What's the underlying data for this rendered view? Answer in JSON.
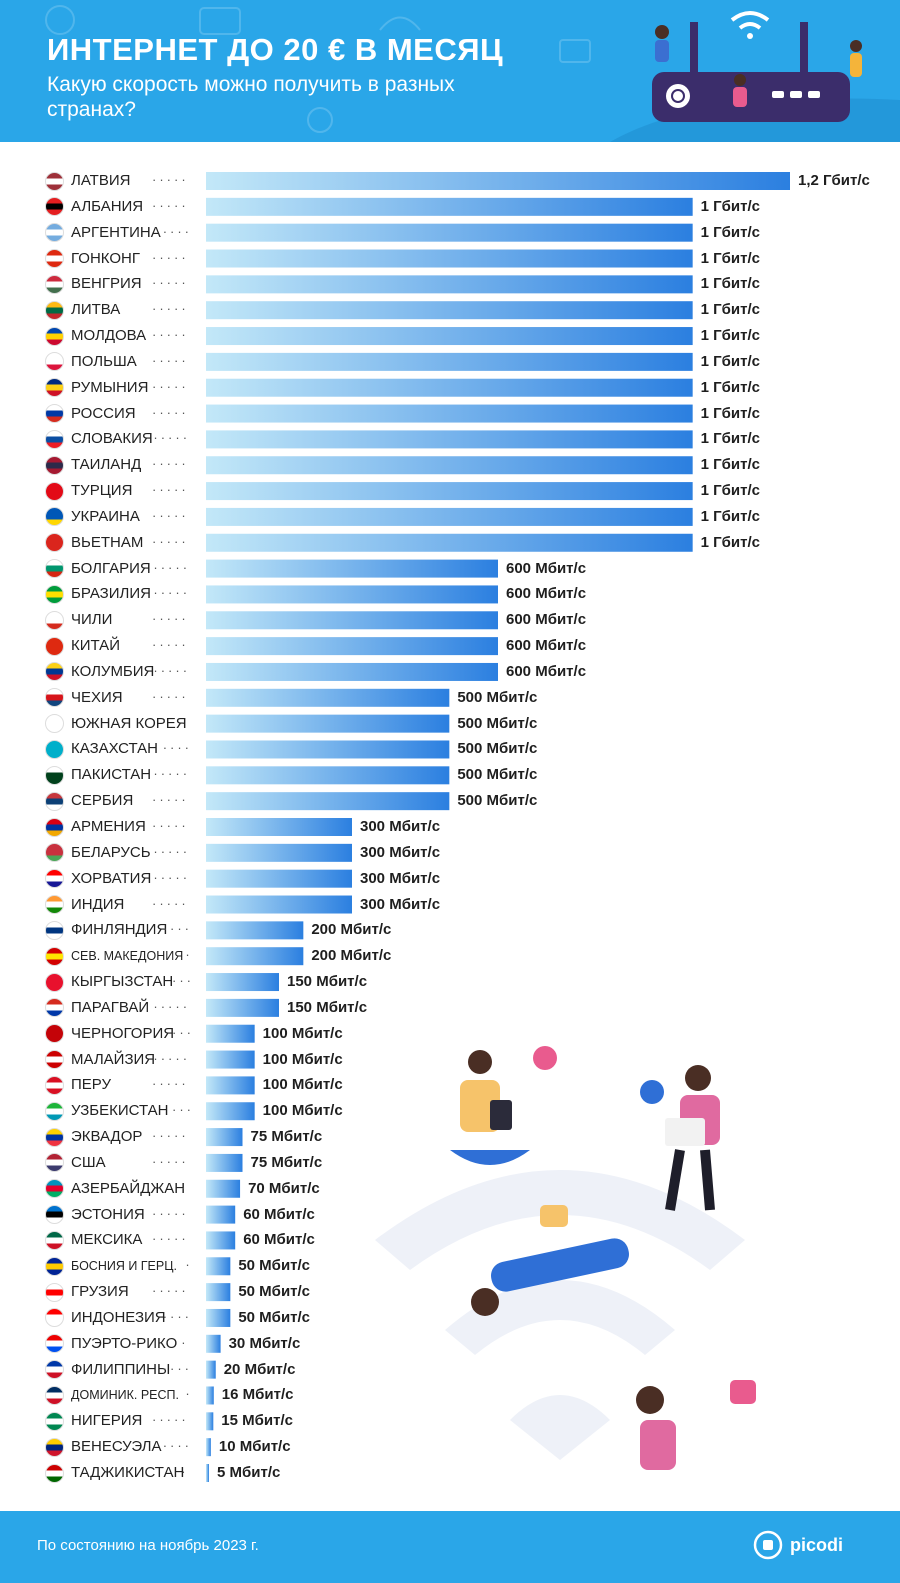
{
  "header": {
    "title": "ИНТЕРНЕТ ДО 20 € В МЕСЯЦ",
    "subtitle": "Какую скорость можно получить в разных странах?"
  },
  "footer": {
    "note": "По состоянию на ноябрь 2023 г.",
    "brand": "picodi"
  },
  "colors": {
    "header_bg": "#2aa6e8",
    "bar_start": "#bfe6f7",
    "bar_end": "#2b7fe0",
    "text": "#222222"
  },
  "chart_data": {
    "type": "bar",
    "orientation": "horizontal",
    "unit": "Мбит/с",
    "categories": [
      "ЛАТВИЯ",
      "АЛБАНИЯ",
      "АРГЕНТИНА",
      "ГОНКОНГ",
      "ВЕНГРИЯ",
      "ЛИТВА",
      "МОЛДОВА",
      "ПОЛЬША",
      "РУМЫНИЯ",
      "РОССИЯ",
      "СЛОВАКИЯ",
      "ТАИЛАНД",
      "ТУРЦИЯ",
      "УКРАИНА",
      "ВЬЕТНАМ",
      "БОЛГАРИЯ",
      "БРАЗИЛИЯ",
      "ЧИЛИ",
      "КИТАЙ",
      "КОЛУМБИЯ",
      "ЧЕХИЯ",
      "ЮЖНАЯ КОРЕЯ",
      "КАЗАХСТАН",
      "ПАКИСТАН",
      "СЕРБИЯ",
      "АРМЕНИЯ",
      "БЕЛАРУСЬ",
      "ХОРВАТИЯ",
      "ИНДИЯ",
      "ФИНЛЯНДИЯ",
      "СЕВ. МАКЕДОНИЯ",
      "КЫРГЫЗСТАН",
      "ПАРАГВАЙ",
      "ЧЕРНОГОРИЯ",
      "МАЛАЙЗИЯ",
      "ПЕРУ",
      "УЗБЕКИСТАН",
      "ЭКВАДОР",
      "США",
      "АЗЕРБАЙДЖАН",
      "ЭСТОНИЯ",
      "МЕКСИКА",
      "БОСНИЯ И ГЕРЦ.",
      "ГРУЗИЯ",
      "ИНДОНЕЗИЯ",
      "ПУЭРТО-РИКО",
      "ФИЛИППИНЫ",
      "ДОМИНИК. РЕСП.",
      "НИГЕРИЯ",
      "ВЕНЕСУЭЛА",
      "ТАДЖИКИСТАН"
    ],
    "values": [
      1200,
      1000,
      1000,
      1000,
      1000,
      1000,
      1000,
      1000,
      1000,
      1000,
      1000,
      1000,
      1000,
      1000,
      1000,
      600,
      600,
      600,
      600,
      600,
      500,
      500,
      500,
      500,
      500,
      300,
      300,
      300,
      300,
      200,
      200,
      150,
      150,
      100,
      100,
      100,
      100,
      75,
      75,
      70,
      60,
      60,
      50,
      50,
      50,
      30,
      20,
      16,
      15,
      10,
      5
    ],
    "value_labels": [
      "1,2 Гбит/с",
      "1 Гбит/с",
      "1 Гбит/с",
      "1 Гбит/с",
      "1 Гбит/с",
      "1 Гбит/с",
      "1 Гбит/с",
      "1 Гбит/с",
      "1 Гбит/с",
      "1 Гбит/с",
      "1 Гбит/с",
      "1 Гбит/с",
      "1 Гбит/с",
      "1 Гбит/с",
      "1 Гбит/с",
      "600 Мбит/с",
      "600 Мбит/с",
      "600 Мбит/с",
      "600 Мбит/с",
      "600 Мбит/с",
      "500 Мбит/с",
      "500 Мбит/с",
      "500 Мбит/с",
      "500 Мбит/с",
      "500 Мбит/с",
      "300 Мбит/с",
      "300 Мбит/с",
      "300 Мбит/с",
      "300 Мбит/с",
      "200 Мбит/с",
      "200 Мбит/с",
      "150 Мбит/с",
      "150 Мбит/с",
      "100 Мбит/с",
      "100 Мбит/с",
      "100 Мбит/с",
      "100 Мбит/с",
      "75 Мбит/с",
      "75 Мбит/с",
      "70 Мбит/с",
      "60 Мбит/с",
      "60 Мбит/с",
      "50 Мбит/с",
      "50 Мбит/с",
      "50 Мбит/с",
      "30 Мбит/с",
      "20 Мбит/с",
      "16 Мбит/с",
      "15 Мбит/с",
      "10 Мбит/с",
      "5 Мбит/с"
    ],
    "flags": [
      [
        "#9e3039",
        "#ffffff",
        "#9e3039"
      ],
      [
        "#e41e20",
        "#000000",
        "#e41e20"
      ],
      [
        "#74acdf",
        "#ffffff",
        "#74acdf"
      ],
      [
        "#de2910",
        "#ffffff",
        "#de2910"
      ],
      [
        "#cd2a3e",
        "#ffffff",
        "#436f4d"
      ],
      [
        "#fdb913",
        "#006a44",
        "#c1272d"
      ],
      [
        "#0046ae",
        "#ffd200",
        "#cc092f"
      ],
      [
        "#ffffff",
        "#ffffff",
        "#dc143c"
      ],
      [
        "#002b7f",
        "#fcd116",
        "#ce1126"
      ],
      [
        "#ffffff",
        "#0039a6",
        "#d52b1e"
      ],
      [
        "#ffffff",
        "#0b4ea2",
        "#ee1c25"
      ],
      [
        "#a51931",
        "#2d2a4a",
        "#a51931"
      ],
      [
        "#e30a17",
        "#e30a17",
        "#e30a17"
      ],
      [
        "#0057b7",
        "#0057b7",
        "#ffd700"
      ],
      [
        "#da251d",
        "#da251d",
        "#da251d"
      ],
      [
        "#ffffff",
        "#00966e",
        "#d62612"
      ],
      [
        "#009c3b",
        "#ffdf00",
        "#009c3b"
      ],
      [
        "#ffffff",
        "#ffffff",
        "#d52b1e"
      ],
      [
        "#de2910",
        "#de2910",
        "#de2910"
      ],
      [
        "#fcd116",
        "#003893",
        "#ce1126"
      ],
      [
        "#ffffff",
        "#d7141a",
        "#11457e"
      ],
      [
        "#ffffff",
        "#ffffff",
        "#ffffff"
      ],
      [
        "#00afca",
        "#00afca",
        "#00afca"
      ],
      [
        "#ffffff",
        "#01411c",
        "#01411c"
      ],
      [
        "#c6363c",
        "#0c4076",
        "#ffffff"
      ],
      [
        "#d90012",
        "#0033a0",
        "#f2a800"
      ],
      [
        "#c8313e",
        "#c8313e",
        "#4aa657"
      ],
      [
        "#ff0000",
        "#ffffff",
        "#171796"
      ],
      [
        "#ff9933",
        "#ffffff",
        "#138808"
      ],
      [
        "#ffffff",
        "#003580",
        "#ffffff"
      ],
      [
        "#d20000",
        "#ffe600",
        "#d20000"
      ],
      [
        "#e8112d",
        "#e8112d",
        "#e8112d"
      ],
      [
        "#d52b1e",
        "#ffffff",
        "#0038a8"
      ],
      [
        "#c40308",
        "#c40308",
        "#c40308"
      ],
      [
        "#cc0001",
        "#ffffff",
        "#cc0001"
      ],
      [
        "#d91023",
        "#ffffff",
        "#d91023"
      ],
      [
        "#1eb53a",
        "#ffffff",
        "#0099b5"
      ],
      [
        "#ffd100",
        "#0033a0",
        "#ef3340"
      ],
      [
        "#b22234",
        "#ffffff",
        "#3c3b6e"
      ],
      [
        "#0092bc",
        "#e4002b",
        "#00af66"
      ],
      [
        "#0072ce",
        "#000000",
        "#ffffff"
      ],
      [
        "#006847",
        "#ffffff",
        "#ce1126"
      ],
      [
        "#002395",
        "#fecb00",
        "#002395"
      ],
      [
        "#ffffff",
        "#ff0000",
        "#ffffff"
      ],
      [
        "#ff0000",
        "#ffffff",
        "#ffffff"
      ],
      [
        "#ed0000",
        "#ffffff",
        "#0050f0"
      ],
      [
        "#0038a8",
        "#ffffff",
        "#ce1126"
      ],
      [
        "#002d62",
        "#ffffff",
        "#ce1126"
      ],
      [
        "#008751",
        "#ffffff",
        "#008751"
      ],
      [
        "#ffcc00",
        "#00247d",
        "#cf142b"
      ],
      [
        "#cc0000",
        "#ffffff",
        "#006600"
      ]
    ],
    "xlim": [
      0,
      1200
    ],
    "title": "",
    "xlabel": "",
    "ylabel": ""
  }
}
